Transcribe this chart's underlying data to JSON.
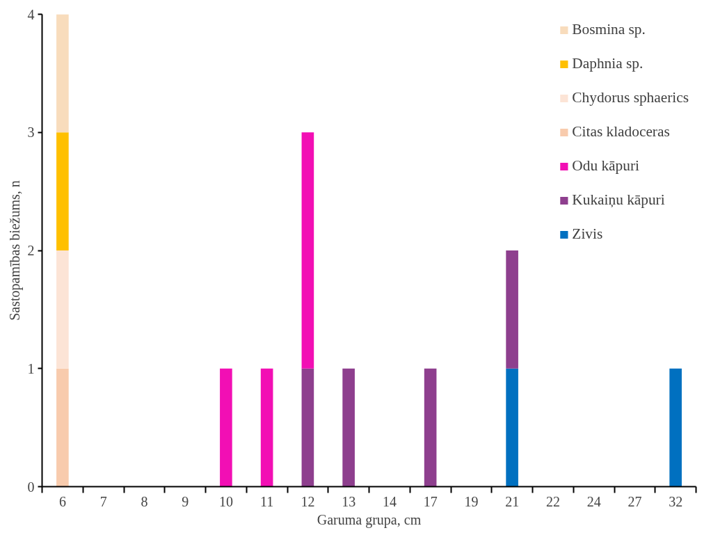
{
  "chart_data": {
    "type": "bar",
    "stacked": true,
    "xlabel": "Garuma grupa, cm",
    "ylabel": "Sastopamības biežums, n",
    "categories": [
      "6",
      "7",
      "8",
      "9",
      "10",
      "11",
      "12",
      "13",
      "14",
      "17",
      "19",
      "21",
      "22",
      "24",
      "27",
      "32"
    ],
    "series": [
      {
        "name": "Zivis",
        "color": "#0070c0",
        "values": [
          null,
          null,
          null,
          null,
          null,
          null,
          null,
          null,
          null,
          null,
          null,
          1,
          null,
          null,
          null,
          1
        ]
      },
      {
        "name": "Kukaiņu kāpuri",
        "color": "#8e3f8e",
        "values": [
          null,
          null,
          null,
          null,
          null,
          null,
          1,
          1,
          null,
          1,
          null,
          1,
          null,
          null,
          null,
          null
        ]
      },
      {
        "name": "Odu kāpuri",
        "color": "#f20fb4",
        "values": [
          null,
          null,
          null,
          null,
          1,
          1,
          2,
          null,
          null,
          null,
          null,
          null,
          null,
          null,
          null,
          null
        ]
      },
      {
        "name": "Citas kladoceras",
        "color": "#f8cbad",
        "values": [
          1,
          null,
          null,
          null,
          null,
          null,
          null,
          null,
          null,
          null,
          null,
          null,
          null,
          null,
          null,
          null
        ]
      },
      {
        "name": "Chydorus sphaerics",
        "color": "#fce4d6",
        "values": [
          1,
          null,
          null,
          null,
          null,
          null,
          null,
          null,
          null,
          null,
          null,
          null,
          null,
          null,
          null,
          null
        ]
      },
      {
        "name": "Daphnia sp.",
        "color": "#ffc000",
        "values": [
          1,
          null,
          null,
          null,
          null,
          null,
          null,
          null,
          null,
          null,
          null,
          null,
          null,
          null,
          null,
          null
        ]
      },
      {
        "name": "Bosmina sp.",
        "color": "#f8dcbc",
        "values": [
          1,
          null,
          null,
          null,
          null,
          null,
          null,
          null,
          null,
          null,
          null,
          null,
          null,
          null,
          null,
          null
        ]
      }
    ],
    "ylim": [
      0,
      4
    ],
    "yticks": [
      0,
      1,
      2,
      3,
      4
    ],
    "grid": false,
    "legend": "top right"
  }
}
